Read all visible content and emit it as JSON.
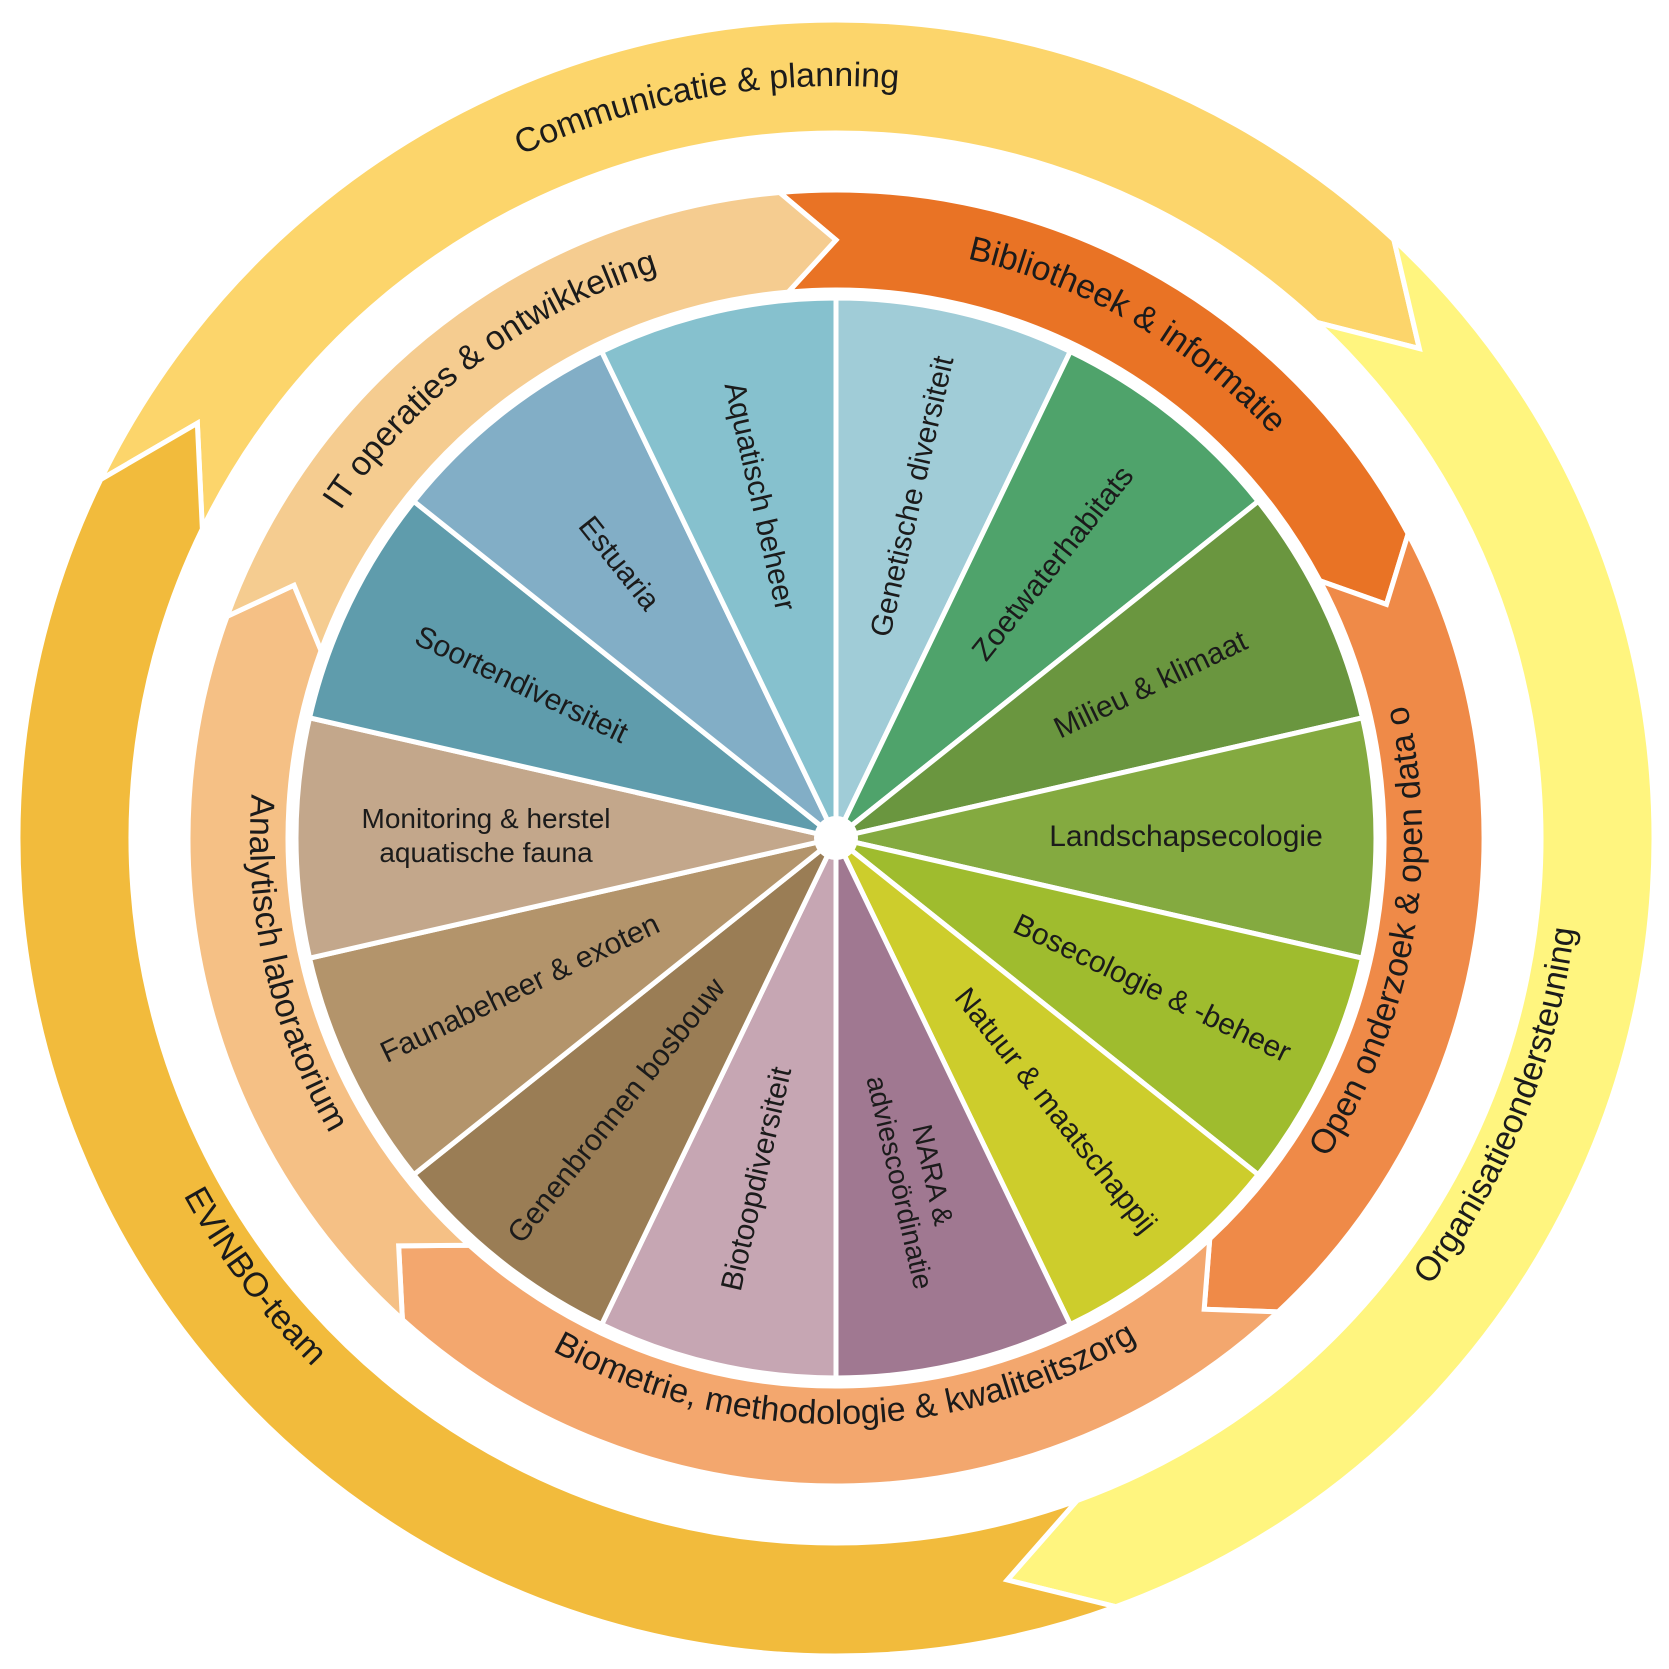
{
  "outer_ring": [
    {
      "id": "communicatie",
      "label": "Communicatie & planning",
      "color": "#fcd56b"
    },
    {
      "id": "organisatie",
      "label": "Organisatieondersteuning",
      "color": "#fff57f"
    },
    {
      "id": "team",
      "label": "EVINBO-team",
      "color": "#f2bb3c"
    }
  ],
  "middle_ring": [
    {
      "id": "bibliotheek",
      "label": "Bibliotheek & informatie",
      "color": "#e97325"
    },
    {
      "id": "open",
      "label": "Open onderzoek & open data o",
      "color": "#ef8a48"
    },
    {
      "id": "biometrie",
      "label": "Biometrie, methodologie & kwaliteitszorg",
      "color": "#f3a76e"
    },
    {
      "id": "lab",
      "label": "Analytisch laboratorium",
      "color": "#f5c085"
    },
    {
      "id": "it",
      "label": "IT operaties & ontwikkeling",
      "color": "#f5cc90"
    }
  ],
  "segments": [
    {
      "lines": [
        "Genetische diversiteit"
      ],
      "color": "#a0ccd7"
    },
    {
      "lines": [
        "Zoetwaterhabitats"
      ],
      "color": "#4fa36b"
    },
    {
      "lines": [
        "Milieu & klimaat"
      ],
      "color": "#6a963f"
    },
    {
      "lines": [
        "Landschapsecologie"
      ],
      "color": "#84aa40"
    },
    {
      "lines": [
        "Bosecologie & -beheer"
      ],
      "color": "#9fbc2e"
    },
    {
      "lines": [
        "Natuur & maatschappij"
      ],
      "color": "#cdcd2c"
    },
    {
      "lines": [
        "NARA &",
        "adviescoördinatie"
      ],
      "color": "#a07891"
    },
    {
      "lines": [
        "Biotoopdiversiteit"
      ],
      "color": "#c6a6b3"
    },
    {
      "lines": [
        "Genenbronnen bosbouw"
      ],
      "color": "#9a7d55"
    },
    {
      "lines": [
        "Faunabeheer & exoten"
      ],
      "color": "#b3946b"
    },
    {
      "lines": [
        "Monitoring & herstel",
        "aquatische fauna"
      ],
      "color": "#c3a78b"
    },
    {
      "lines": [
        "Soortendiversiteit"
      ],
      "color": "#5f9cac"
    },
    {
      "lines": [
        "Estuaria"
      ],
      "color": "#82aec6"
    },
    {
      "lines": [
        "Aquatisch beheer"
      ],
      "color": "#86c1ce"
    }
  ]
}
